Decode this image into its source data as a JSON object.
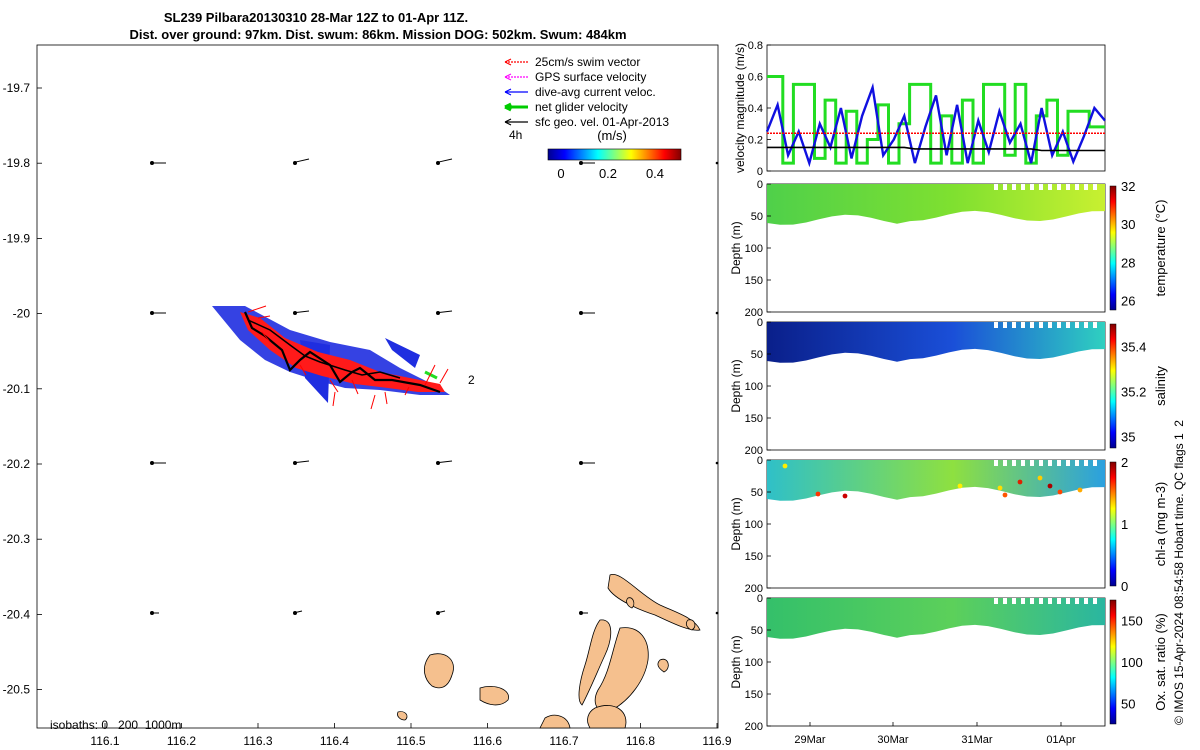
{
  "title": {
    "line1": "SL239 Pilbara20130310 28-Mar 12Z to 01-Apr 11Z.",
    "line2": "Dist. over ground: 97km. Dist. swum: 86km. Mission DOG: 502km. Swum: 484km"
  },
  "side_note": "© IMOS 15-Apr-2024 08:54:58 Hobart time. QC flags 1  2",
  "map": {
    "x_ticks": [
      "116.1",
      "116.2",
      "116.3",
      "116.4",
      "116.5",
      "116.6",
      "116.7",
      "116.8",
      "116.9"
    ],
    "y_ticks": [
      "-19.7",
      "-19.8",
      "-19.9",
      "-20",
      "-20.1",
      "-20.2",
      "-20.3",
      "-20.4",
      "-20.5"
    ],
    "legend": [
      {
        "label": "25cm/s swim vector",
        "color": "#ff0000",
        "style": "dotted"
      },
      {
        "label": "GPS surface velocity",
        "color": "#ff00ff",
        "style": "dotted"
      },
      {
        "label": "dive-avg current veloc.",
        "color": "#0000ff",
        "style": "solid"
      },
      {
        "label": "net glider velocity",
        "color": "#00cc00",
        "style": "thick"
      },
      {
        "label": "sfc geo. vel. 01-Apr-2013",
        "color": "#000000",
        "style": "solid"
      }
    ],
    "legend_time": "4h",
    "colorbar": {
      "title": "(m/s)",
      "ticks": [
        "0",
        "0.2",
        "0.4"
      ],
      "colormap": "jet"
    },
    "track_end_label": "2",
    "isobaths": "isobaths: 0   200  1000m",
    "land_color": "#f5c08e"
  },
  "velocity_panel": {
    "ylabel": "velocity magnitude (m/s)",
    "y_ticks": [
      "0",
      "0.2",
      "0.4",
      "0.6",
      "0.8"
    ],
    "colors": {
      "blue": "#1010e0",
      "green": "#22dd22",
      "red": "#ff0000",
      "black": "#000000"
    }
  },
  "sections": [
    {
      "ylabel": "Depth (m)",
      "cbar_label": "temperature (°C)",
      "cbar_ticks": [
        "32",
        "30",
        "28",
        "26"
      ]
    },
    {
      "ylabel": "Depth (m)",
      "cbar_label": "salinity",
      "cbar_ticks": [
        "35.4",
        "35.2",
        "35"
      ]
    },
    {
      "ylabel": "Depth (m)",
      "cbar_label": "chl-a (mg m-3)",
      "cbar_ticks": [
        "2",
        "1",
        "0"
      ]
    },
    {
      "ylabel": "Depth (m)",
      "cbar_label": "Ox. sat. ratio (%)",
      "cbar_ticks": [
        "150",
        "100",
        "50"
      ]
    }
  ],
  "depth_ticks": [
    "0",
    "50",
    "100",
    "150",
    "200"
  ],
  "time_ticks": [
    "29Mar",
    "30Mar",
    "31Mar",
    "01Apr"
  ],
  "chart_data": [
    {
      "type": "line",
      "ylabel": "velocity magnitude (m/s)",
      "ylim": [
        0,
        0.8
      ],
      "series": [
        {
          "values": [
            0.25,
            0.42,
            0.1,
            0.25,
            0.05,
            0.3,
            0.15,
            0.4,
            0.08,
            0.35,
            0.53,
            0.1,
            0.2,
            0.35,
            0.05,
            0.28,
            0.48,
            0.1,
            0.42,
            0.05,
            0.32,
            0.12,
            0.38,
            0.18,
            0.3,
            0.05,
            0.4,
            0.1,
            0.25,
            0.06,
            0.22,
            0.4,
            0.32
          ]
        },
        {
          "values": [
            0.6,
            0.6,
            0.05,
            0.55,
            0.55,
            0.08,
            0.45,
            0.05,
            0.38,
            0.05,
            0.2,
            0.42,
            0.05,
            0.3,
            0.55,
            0.55,
            0.05,
            0.35,
            0.05,
            0.45,
            0.05,
            0.55,
            0.55,
            0.1,
            0.55,
            0.05,
            0.35,
            0.45,
            0.1,
            0.38,
            0.38,
            0.28,
            0.28
          ]
        },
        {
          "values": [
            0.24,
            0.24,
            0.24,
            0.24,
            0.24,
            0.24,
            0.24,
            0.24,
            0.24,
            0.24,
            0.24,
            0.24,
            0.24,
            0.24,
            0.24,
            0.24,
            0.24,
            0.24,
            0.24,
            0.24,
            0.24,
            0.24,
            0.24,
            0.24,
            0.24,
            0.24,
            0.24,
            0.24,
            0.24,
            0.24,
            0.24,
            0.24,
            0.24
          ]
        },
        {
          "values": [
            0.15,
            0.15,
            0.15,
            0.15,
            0.15,
            0.15,
            0.15,
            0.15,
            0.15,
            0.15,
            0.15,
            0.15,
            0.15,
            0.15,
            0.14,
            0.14,
            0.14,
            0.14,
            0.14,
            0.14,
            0.14,
            0.14,
            0.14,
            0.14,
            0.14,
            0.14,
            0.13,
            0.13,
            0.13,
            0.13,
            0.13,
            0.13,
            0.13
          ]
        }
      ]
    },
    {
      "type": "heatmap",
      "ylabel": "Depth (m)",
      "clabel": "temperature (°C)",
      "clim": [
        25,
        32
      ],
      "x": [
        "29Mar",
        "30Mar",
        "31Mar",
        "01Apr"
      ],
      "y_range": [
        0,
        200
      ]
    },
    {
      "type": "heatmap",
      "ylabel": "Depth (m)",
      "clabel": "salinity",
      "clim": [
        34.9,
        35.5
      ],
      "x": [
        "29Mar",
        "30Mar",
        "31Mar",
        "01Apr"
      ],
      "y_range": [
        0,
        200
      ]
    },
    {
      "type": "heatmap",
      "ylabel": "Depth (m)",
      "clabel": "chl-a (mg m-3)",
      "clim": [
        0,
        2
      ],
      "x": [
        "29Mar",
        "30Mar",
        "31Mar",
        "01Apr"
      ],
      "y_range": [
        0,
        200
      ]
    },
    {
      "type": "heatmap",
      "ylabel": "Depth (m)",
      "clabel": "Ox. sat. ratio (%)",
      "clim": [
        25,
        175
      ],
      "x": [
        "29Mar",
        "30Mar",
        "31Mar",
        "01Apr"
      ],
      "y_range": [
        0,
        200
      ]
    }
  ]
}
